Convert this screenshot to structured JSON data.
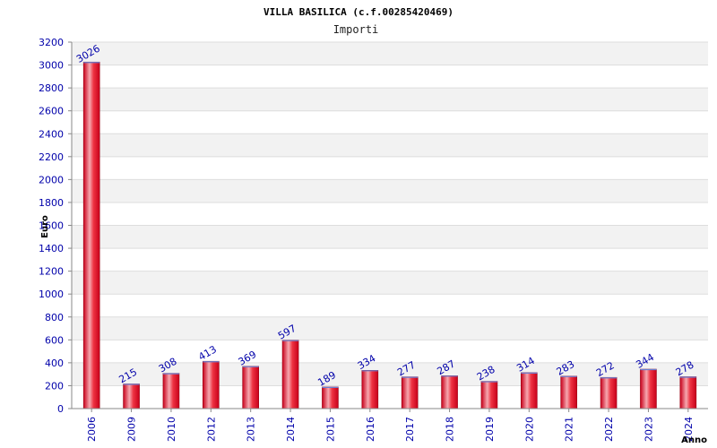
{
  "chart_data": {
    "type": "bar",
    "title": "VILLA BASILICA (c.f.00285420469)",
    "subtitle": "Importi",
    "xlabel": "Anno",
    "ylabel": "Euro",
    "categories": [
      "2006",
      "2009",
      "2010",
      "2012",
      "2013",
      "2014",
      "2015",
      "2016",
      "2017",
      "2018",
      "2019",
      "2020",
      "2021",
      "2022",
      "2023",
      "2024"
    ],
    "values": [
      3026,
      215,
      308,
      413,
      369,
      597,
      189,
      334,
      277,
      287,
      238,
      314,
      283,
      272,
      344,
      278
    ],
    "ylim": [
      0,
      3200
    ],
    "yticks": [
      0,
      200,
      400,
      600,
      800,
      1000,
      1200,
      1400,
      1600,
      1800,
      2000,
      2200,
      2400,
      2600,
      2800,
      3000,
      3200
    ],
    "grid": true,
    "bar_color": "#e8182c",
    "band_color": "#f2f2f2",
    "label_color": "#0000aa"
  }
}
